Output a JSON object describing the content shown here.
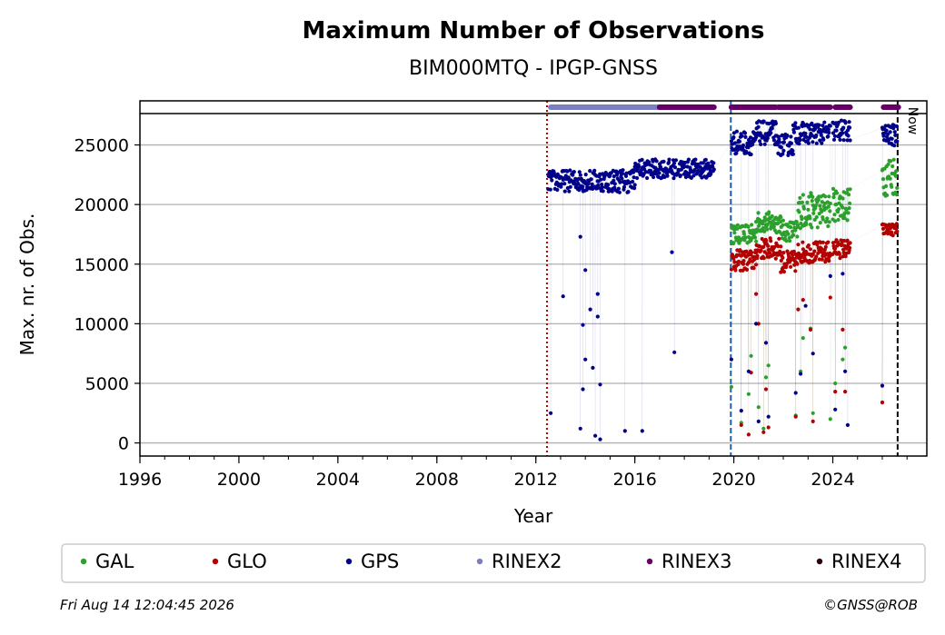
{
  "chart_data": {
    "type": "scatter",
    "title": "Maximum Number of Observations",
    "subtitle": "BIM000MTQ - IPGP-GNSS",
    "xlabel": "Year",
    "ylabel": "Max. nr. of Obs.",
    "xlim": [
      1996,
      2027.8
    ],
    "ylim": [
      -1100,
      28700
    ],
    "x_ticks": [
      1996,
      2000,
      2004,
      2008,
      2012,
      2016,
      2020,
      2024
    ],
    "y_ticks": [
      0,
      5000,
      10000,
      15000,
      20000,
      25000
    ],
    "grid": "horizontal",
    "now_label": "Now",
    "now_year": 2026.62,
    "vertical_events": [
      {
        "year": 2012.45,
        "color": "#2ca02c",
        "style": "dotted"
      },
      {
        "year": 2012.45,
        "color": "#c00000",
        "style": "dotted"
      },
      {
        "year": 2019.88,
        "color": "#1f5fa8",
        "style": "dashed"
      }
    ],
    "format_bars": [
      {
        "name": "RINEX2",
        "start": 2012.6,
        "end": 2017.0
      },
      {
        "name": "RINEX3",
        "start": 2017.0,
        "end": 2019.2
      },
      {
        "name": "RINEX3",
        "start": 2019.9,
        "end": 2021.7
      },
      {
        "name": "RINEX3",
        "start": 2021.8,
        "end": 2023.9
      },
      {
        "name": "RINEX3",
        "start": 2024.1,
        "end": 2024.7
      },
      {
        "name": "RINEX3",
        "start": 2026.05,
        "end": 2026.65
      }
    ],
    "series": [
      {
        "name": "GAL",
        "color": "#2ca02c",
        "segments": [
          {
            "start": 2019.9,
            "end": 2020.9,
            "base": 17500,
            "noise": 800
          },
          {
            "start": 2020.9,
            "end": 2021.9,
            "base": 18500,
            "noise": 900
          },
          {
            "start": 2021.9,
            "end": 2022.6,
            "base": 17800,
            "noise": 900
          },
          {
            "start": 2022.6,
            "end": 2023.9,
            "base": 19500,
            "noise": 1500
          },
          {
            "start": 2024.0,
            "end": 2024.7,
            "base": 20000,
            "noise": 1400
          },
          {
            "start": 2026.0,
            "end": 2026.6,
            "base": 22500,
            "noise": 1800
          }
        ],
        "outliers": [
          [
            2019.9,
            4700
          ],
          [
            2020.3,
            1700
          ],
          [
            2020.6,
            4100
          ],
          [
            2020.7,
            7300
          ],
          [
            2021.0,
            3000
          ],
          [
            2021.3,
            5500
          ],
          [
            2021.4,
            6500
          ],
          [
            2021.2,
            1200
          ],
          [
            2022.5,
            2300
          ],
          [
            2022.7,
            6000
          ],
          [
            2022.8,
            8800
          ],
          [
            2023.1,
            9600
          ],
          [
            2023.2,
            2500
          ],
          [
            2023.9,
            2000
          ],
          [
            2024.1,
            5000
          ],
          [
            2024.4,
            7000
          ],
          [
            2024.5,
            8000
          ],
          [
            2026.0,
            3400
          ]
        ]
      },
      {
        "name": "GLO",
        "color": "#b30000",
        "segments": [
          {
            "start": 2019.9,
            "end": 2020.9,
            "base": 15300,
            "noise": 900
          },
          {
            "start": 2020.9,
            "end": 2021.9,
            "base": 16300,
            "noise": 900
          },
          {
            "start": 2021.9,
            "end": 2022.6,
            "base": 15200,
            "noise": 900
          },
          {
            "start": 2022.6,
            "end": 2023.9,
            "base": 16000,
            "noise": 900
          },
          {
            "start": 2024.0,
            "end": 2024.7,
            "base": 16300,
            "noise": 800
          },
          {
            "start": 2026.0,
            "end": 2026.6,
            "base": 17900,
            "noise": 500
          }
        ],
        "outliers": [
          [
            2020.3,
            1500
          ],
          [
            2020.6,
            700
          ],
          [
            2020.7,
            5900
          ],
          [
            2020.9,
            12500
          ],
          [
            2021.0,
            10000
          ],
          [
            2021.3,
            4500
          ],
          [
            2021.4,
            1300
          ],
          [
            2021.2,
            900
          ],
          [
            2022.5,
            2200
          ],
          [
            2022.6,
            11200
          ],
          [
            2022.8,
            12000
          ],
          [
            2023.1,
            9500
          ],
          [
            2023.2,
            1800
          ],
          [
            2023.9,
            12200
          ],
          [
            2024.1,
            4300
          ],
          [
            2024.4,
            9500
          ],
          [
            2024.5,
            4300
          ],
          [
            2026.0,
            3400
          ]
        ]
      },
      {
        "name": "GPS",
        "color": "#00008b",
        "segments": [
          {
            "start": 2012.5,
            "end": 2014.9,
            "base": 22000,
            "noise": 900
          },
          {
            "start": 2014.9,
            "end": 2016.0,
            "base": 22000,
            "noise": 1000
          },
          {
            "start": 2016.0,
            "end": 2019.2,
            "base": 23000,
            "noise": 800
          },
          {
            "start": 2019.9,
            "end": 2020.9,
            "base": 25200,
            "noise": 1000
          },
          {
            "start": 2020.9,
            "end": 2021.7,
            "base": 26000,
            "noise": 1000
          },
          {
            "start": 2021.7,
            "end": 2022.4,
            "base": 25000,
            "noise": 900
          },
          {
            "start": 2022.4,
            "end": 2023.9,
            "base": 26000,
            "noise": 900
          },
          {
            "start": 2024.0,
            "end": 2024.7,
            "base": 26200,
            "noise": 900
          },
          {
            "start": 2026.0,
            "end": 2026.6,
            "base": 25800,
            "noise": 900
          }
        ],
        "outliers": [
          [
            2012.6,
            2500
          ],
          [
            2013.1,
            12300
          ],
          [
            2013.8,
            17300
          ],
          [
            2013.9,
            9900
          ],
          [
            2014.0,
            14500
          ],
          [
            2014.0,
            7000
          ],
          [
            2014.2,
            11200
          ],
          [
            2014.3,
            6300
          ],
          [
            2014.5,
            12500
          ],
          [
            2014.5,
            10600
          ],
          [
            2014.6,
            4900
          ],
          [
            2013.9,
            4500
          ],
          [
            2013.8,
            1200
          ],
          [
            2014.4,
            600
          ],
          [
            2014.6,
            300
          ],
          [
            2015.6,
            1000
          ],
          [
            2016.3,
            1000
          ],
          [
            2017.5,
            16000
          ],
          [
            2017.6,
            7600
          ],
          [
            2019.9,
            7000
          ],
          [
            2020.3,
            2700
          ],
          [
            2020.6,
            6000
          ],
          [
            2020.7,
            24200
          ],
          [
            2020.9,
            10000
          ],
          [
            2021.0,
            1800
          ],
          [
            2021.3,
            8400
          ],
          [
            2021.4,
            2200
          ],
          [
            2022.5,
            4200
          ],
          [
            2022.7,
            5800
          ],
          [
            2022.9,
            11500
          ],
          [
            2023.2,
            7500
          ],
          [
            2023.9,
            14000
          ],
          [
            2024.1,
            2800
          ],
          [
            2024.4,
            14200
          ],
          [
            2024.5,
            6000
          ],
          [
            2024.6,
            1500
          ],
          [
            2026.0,
            4800
          ]
        ]
      }
    ],
    "legend": [
      "GAL",
      "GLO",
      "GPS",
      "RINEX2",
      "RINEX3",
      "RINEX4"
    ],
    "legend_colors": [
      "#2ca02c",
      "#b30000",
      "#00008b",
      "#7b7fbf",
      "#660066",
      "#2b0015"
    ],
    "legend_position": "bottom"
  },
  "footer": {
    "timestamp": "Fri Aug 14 12:04:45 2026",
    "credit": "©GNSS@ROB"
  }
}
